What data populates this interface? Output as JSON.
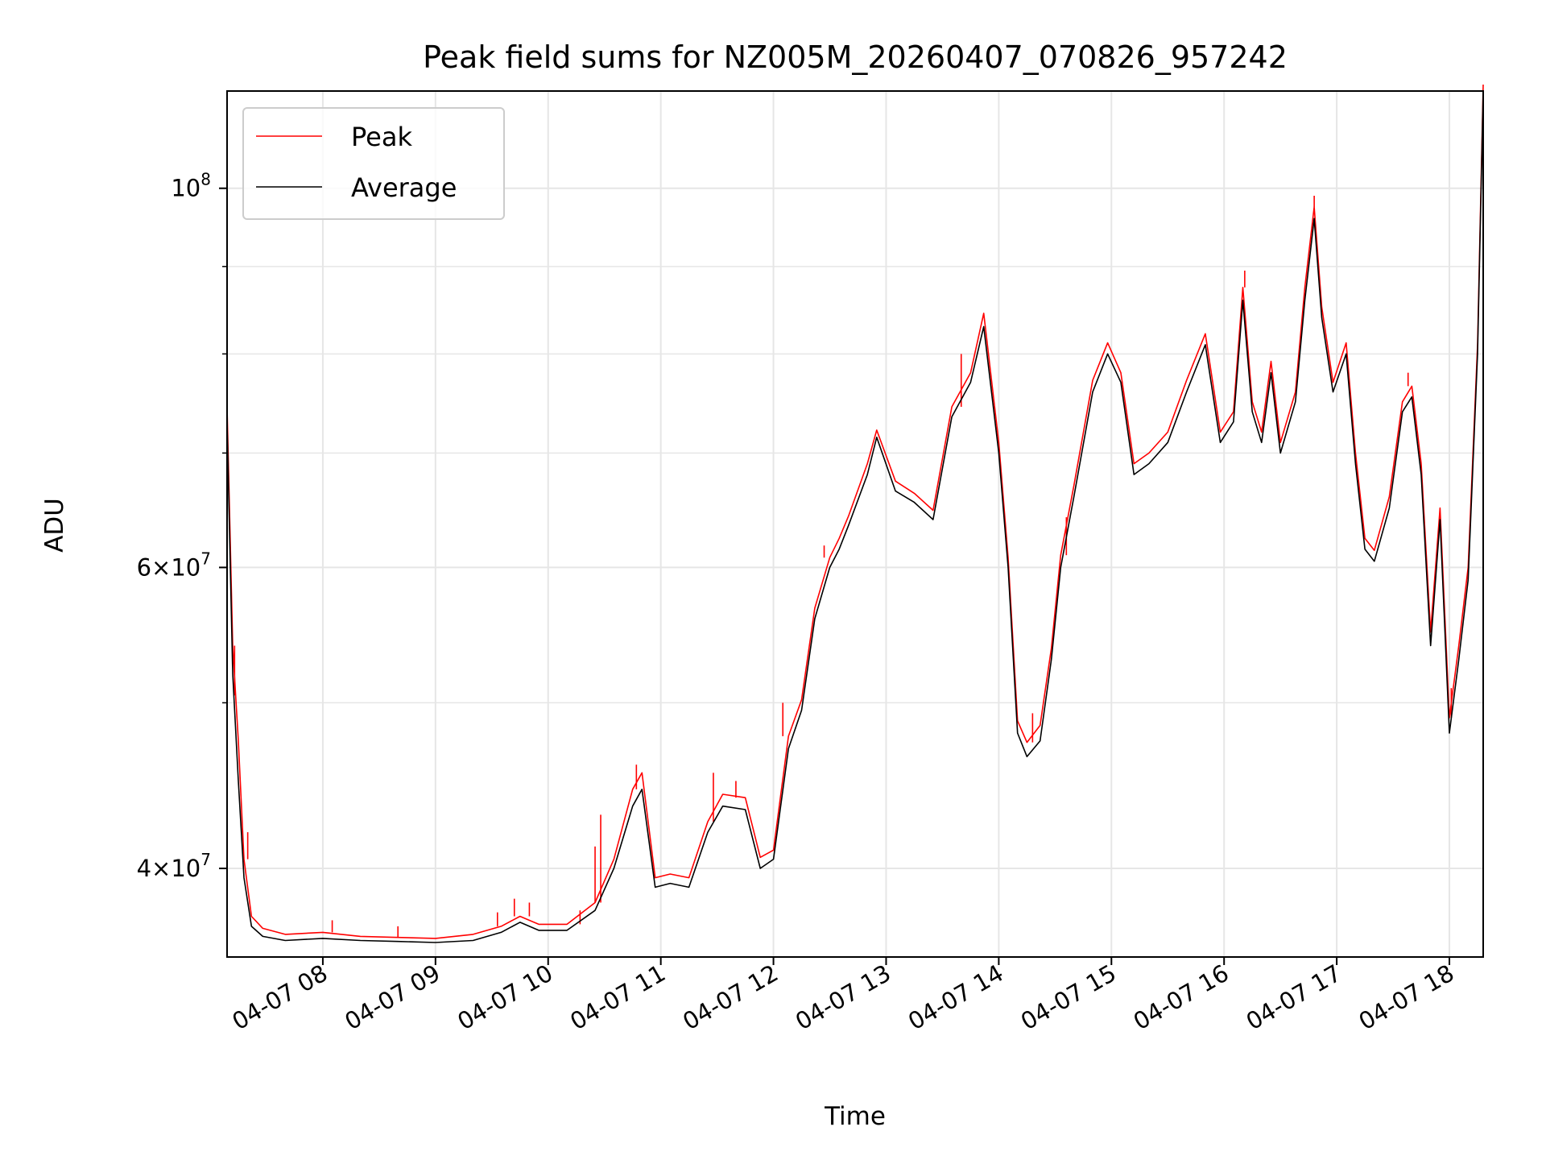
{
  "chart_data": {
    "type": "line",
    "title": "Peak field sums for NZ005M_20260407_070826_957242",
    "xlabel": "Time",
    "ylabel": "ADU",
    "y_scale": "log",
    "ylim": [
      35500000,
      114000000
    ],
    "xlim": [
      "04-07 07:09",
      "04-07 18:18"
    ],
    "x_ticks": [
      "04-07 08",
      "04-07 09",
      "04-07 10",
      "04-07 11",
      "04-07 12",
      "04-07 13",
      "04-07 14",
      "04-07 15",
      "04-07 16",
      "04-07 17",
      "04-07 18"
    ],
    "y_major_ticks": [
      {
        "value": 40000000,
        "mantissa": "4",
        "exponent": "7"
      },
      {
        "value": 60000000,
        "mantissa": "6",
        "exponent": "7"
      },
      {
        "value": 100000000,
        "mantissa": "",
        "exponent": "8"
      }
    ],
    "y_minor_ticks": [
      50000000,
      70000000,
      80000000,
      90000000
    ],
    "grid": true,
    "legend": {
      "position": "top-left",
      "entries": [
        "Peak",
        "Average"
      ]
    },
    "series": [
      {
        "name": "Average",
        "color": "#000000",
        "points": [
          [
            "04-07 07:09",
            73000000
          ],
          [
            "04-07 07:12",
            52000000
          ],
          [
            "04-07 07:15",
            45000000
          ],
          [
            "04-07 07:18",
            39500000
          ],
          [
            "04-07 07:22",
            37000000
          ],
          [
            "04-07 07:28",
            36500000
          ],
          [
            "04-07 07:40",
            36300000
          ],
          [
            "04-07 08:00",
            36400000
          ],
          [
            "04-07 08:20",
            36300000
          ],
          [
            "04-07 08:40",
            36250000
          ],
          [
            "04-07 09:00",
            36200000
          ],
          [
            "04-07 09:20",
            36300000
          ],
          [
            "04-07 09:35",
            36700000
          ],
          [
            "04-07 09:45",
            37200000
          ],
          [
            "04-07 09:55",
            36800000
          ],
          [
            "04-07 10:10",
            36800000
          ],
          [
            "04-07 10:25",
            37800000
          ],
          [
            "04-07 10:35",
            40000000
          ],
          [
            "04-07 10:45",
            43500000
          ],
          [
            "04-07 10:50",
            44500000
          ],
          [
            "04-07 10:57",
            39000000
          ],
          [
            "04-07 11:05",
            39200000
          ],
          [
            "04-07 11:15",
            39000000
          ],
          [
            "04-07 11:25",
            42000000
          ],
          [
            "04-07 11:33",
            43500000
          ],
          [
            "04-07 11:45",
            43300000
          ],
          [
            "04-07 11:53",
            40000000
          ],
          [
            "04-07 12:00",
            40500000
          ],
          [
            "04-07 12:08",
            47000000
          ],
          [
            "04-07 12:15",
            49500000
          ],
          [
            "04-07 12:22",
            56000000
          ],
          [
            "04-07 12:30",
            60000000
          ],
          [
            "04-07 12:35",
            61500000
          ],
          [
            "04-07 12:40",
            63500000
          ],
          [
            "04-07 12:50",
            68000000
          ],
          [
            "04-07 12:55",
            71500000
          ],
          [
            "04-07 13:05",
            66500000
          ],
          [
            "04-07 13:15",
            65500000
          ],
          [
            "04-07 13:25",
            64000000
          ],
          [
            "04-07 13:35",
            73500000
          ],
          [
            "04-07 13:45",
            77000000
          ],
          [
            "04-07 13:52",
            83000000
          ],
          [
            "04-07 14:00",
            70000000
          ],
          [
            "04-07 14:05",
            60000000
          ],
          [
            "04-07 14:10",
            48000000
          ],
          [
            "04-07 14:15",
            46500000
          ],
          [
            "04-07 14:22",
            47500000
          ],
          [
            "04-07 14:28",
            53000000
          ],
          [
            "04-07 14:33",
            60000000
          ],
          [
            "04-07 14:40",
            66000000
          ],
          [
            "04-07 14:50",
            76000000
          ],
          [
            "04-07 14:58",
            80000000
          ],
          [
            "04-07 15:05",
            77000000
          ],
          [
            "04-07 15:12",
            68000000
          ],
          [
            "04-07 15:20",
            69000000
          ],
          [
            "04-07 15:30",
            71000000
          ],
          [
            "04-07 15:40",
            76000000
          ],
          [
            "04-07 15:50",
            81000000
          ],
          [
            "04-07 15:58",
            71000000
          ],
          [
            "04-07 16:05",
            73000000
          ],
          [
            "04-07 16:10",
            86000000
          ],
          [
            "04-07 16:15",
            74000000
          ],
          [
            "04-07 16:20",
            71000000
          ],
          [
            "04-07 16:25",
            78000000
          ],
          [
            "04-07 16:30",
            70000000
          ],
          [
            "04-07 16:38",
            75000000
          ],
          [
            "04-07 16:43",
            86000000
          ],
          [
            "04-07 16:48",
            96000000
          ],
          [
            "04-07 16:52",
            84000000
          ],
          [
            "04-07 16:58",
            76000000
          ],
          [
            "04-07 17:05",
            80000000
          ],
          [
            "04-07 17:10",
            69000000
          ],
          [
            "04-07 17:15",
            61500000
          ],
          [
            "04-07 17:20",
            60500000
          ],
          [
            "04-07 17:28",
            65000000
          ],
          [
            "04-07 17:35",
            74000000
          ],
          [
            "04-07 17:40",
            75500000
          ],
          [
            "04-07 17:45",
            68000000
          ],
          [
            "04-07 17:50",
            54000000
          ],
          [
            "04-07 17:55",
            64000000
          ],
          [
            "04-07 18:00",
            48000000
          ],
          [
            "04-07 18:05",
            53000000
          ],
          [
            "04-07 18:10",
            59000000
          ],
          [
            "04-07 18:15",
            80000000
          ],
          [
            "04-07 18:18",
            114000000
          ]
        ]
      },
      {
        "name": "Peak",
        "color": "#ff0000",
        "points": [
          [
            "04-07 07:09",
            74500000
          ],
          [
            "04-07 07:12",
            54000000
          ],
          [
            "04-07 07:15",
            47500000
          ],
          [
            "04-07 07:18",
            40500000
          ],
          [
            "04-07 07:22",
            37500000
          ],
          [
            "04-07 07:28",
            36900000
          ],
          [
            "04-07 07:40",
            36600000
          ],
          [
            "04-07 08:00",
            36700000
          ],
          [
            "04-07 08:20",
            36500000
          ],
          [
            "04-07 08:40",
            36450000
          ],
          [
            "04-07 09:00",
            36400000
          ],
          [
            "04-07 09:20",
            36600000
          ],
          [
            "04-07 09:35",
            37000000
          ],
          [
            "04-07 09:45",
            37500000
          ],
          [
            "04-07 09:55",
            37100000
          ],
          [
            "04-07 10:10",
            37100000
          ],
          [
            "04-07 10:25",
            38200000
          ],
          [
            "04-07 10:35",
            40500000
          ],
          [
            "04-07 10:45",
            44500000
          ],
          [
            "04-07 10:50",
            45500000
          ],
          [
            "04-07 10:57",
            39500000
          ],
          [
            "04-07 11:05",
            39700000
          ],
          [
            "04-07 11:15",
            39500000
          ],
          [
            "04-07 11:25",
            42600000
          ],
          [
            "04-07 11:33",
            44200000
          ],
          [
            "04-07 11:45",
            44000000
          ],
          [
            "04-07 11:53",
            40600000
          ],
          [
            "04-07 12:00",
            41000000
          ],
          [
            "04-07 12:08",
            47800000
          ],
          [
            "04-07 12:15",
            50200000
          ],
          [
            "04-07 12:22",
            56800000
          ],
          [
            "04-07 12:30",
            60800000
          ],
          [
            "04-07 12:35",
            62400000
          ],
          [
            "04-07 12:40",
            64300000
          ],
          [
            "04-07 12:50",
            69000000
          ],
          [
            "04-07 12:55",
            72200000
          ],
          [
            "04-07 13:05",
            67400000
          ],
          [
            "04-07 13:15",
            66300000
          ],
          [
            "04-07 13:25",
            64800000
          ],
          [
            "04-07 13:35",
            74500000
          ],
          [
            "04-07 13:45",
            78000000
          ],
          [
            "04-07 13:52",
            84500000
          ],
          [
            "04-07 14:00",
            71000000
          ],
          [
            "04-07 14:05",
            60800000
          ],
          [
            "04-07 14:10",
            48800000
          ],
          [
            "04-07 14:15",
            47400000
          ],
          [
            "04-07 14:22",
            48500000
          ],
          [
            "04-07 14:28",
            53800000
          ],
          [
            "04-07 14:33",
            61000000
          ],
          [
            "04-07 14:40",
            67000000
          ],
          [
            "04-07 14:50",
            77200000
          ],
          [
            "04-07 14:58",
            81200000
          ],
          [
            "04-07 15:05",
            78000000
          ],
          [
            "04-07 15:12",
            69000000
          ],
          [
            "04-07 15:20",
            70000000
          ],
          [
            "04-07 15:30",
            72000000
          ],
          [
            "04-07 15:40",
            77200000
          ],
          [
            "04-07 15:50",
            82200000
          ],
          [
            "04-07 15:58",
            72000000
          ],
          [
            "04-07 16:05",
            74000000
          ],
          [
            "04-07 16:10",
            87500000
          ],
          [
            "04-07 16:15",
            75000000
          ],
          [
            "04-07 16:20",
            72000000
          ],
          [
            "04-07 16:25",
            79200000
          ],
          [
            "04-07 16:30",
            71000000
          ],
          [
            "04-07 16:38",
            76000000
          ],
          [
            "04-07 16:43",
            87500000
          ],
          [
            "04-07 16:48",
            97500000
          ],
          [
            "04-07 16:52",
            85200000
          ],
          [
            "04-07 16:58",
            77000000
          ],
          [
            "04-07 17:05",
            81200000
          ],
          [
            "04-07 17:10",
            70000000
          ],
          [
            "04-07 17:15",
            62400000
          ],
          [
            "04-07 17:20",
            61400000
          ],
          [
            "04-07 17:28",
            66000000
          ],
          [
            "04-07 17:35",
            75000000
          ],
          [
            "04-07 17:40",
            76600000
          ],
          [
            "04-07 17:45",
            69000000
          ],
          [
            "04-07 17:50",
            55000000
          ],
          [
            "04-07 17:55",
            65000000
          ],
          [
            "04-07 18:00",
            49000000
          ],
          [
            "04-07 18:05",
            54000000
          ],
          [
            "04-07 18:10",
            60000000
          ],
          [
            "04-07 18:15",
            81000000
          ],
          [
            "04-07 18:18",
            115000000
          ]
        ],
        "spikes": [
          [
            "04-07 07:13",
            50500000
          ],
          [
            "04-07 07:20",
            42000000
          ],
          [
            "04-07 08:05",
            37300000
          ],
          [
            "04-07 08:40",
            37000000
          ],
          [
            "04-07 09:33",
            37700000
          ],
          [
            "04-07 09:42",
            38400000
          ],
          [
            "04-07 09:50",
            38200000
          ],
          [
            "04-07 10:17",
            37800000
          ],
          [
            "04-07 10:25",
            41200000
          ],
          [
            "04-07 10:28",
            43000000
          ],
          [
            "04-07 10:47",
            46000000
          ],
          [
            "04-07 11:28",
            45500000
          ],
          [
            "04-07 11:40",
            45000000
          ],
          [
            "04-07 12:05",
            50000000
          ],
          [
            "04-07 12:27",
            61800000
          ],
          [
            "04-07 13:40",
            80000000
          ],
          [
            "04-07 14:18",
            49300000
          ],
          [
            "04-07 14:36",
            64200000
          ],
          [
            "04-07 16:11",
            89500000
          ],
          [
            "04-07 16:48",
            99000000
          ],
          [
            "04-07 17:38",
            78000000
          ],
          [
            "04-07 18:01",
            51000000
          ]
        ]
      }
    ]
  }
}
